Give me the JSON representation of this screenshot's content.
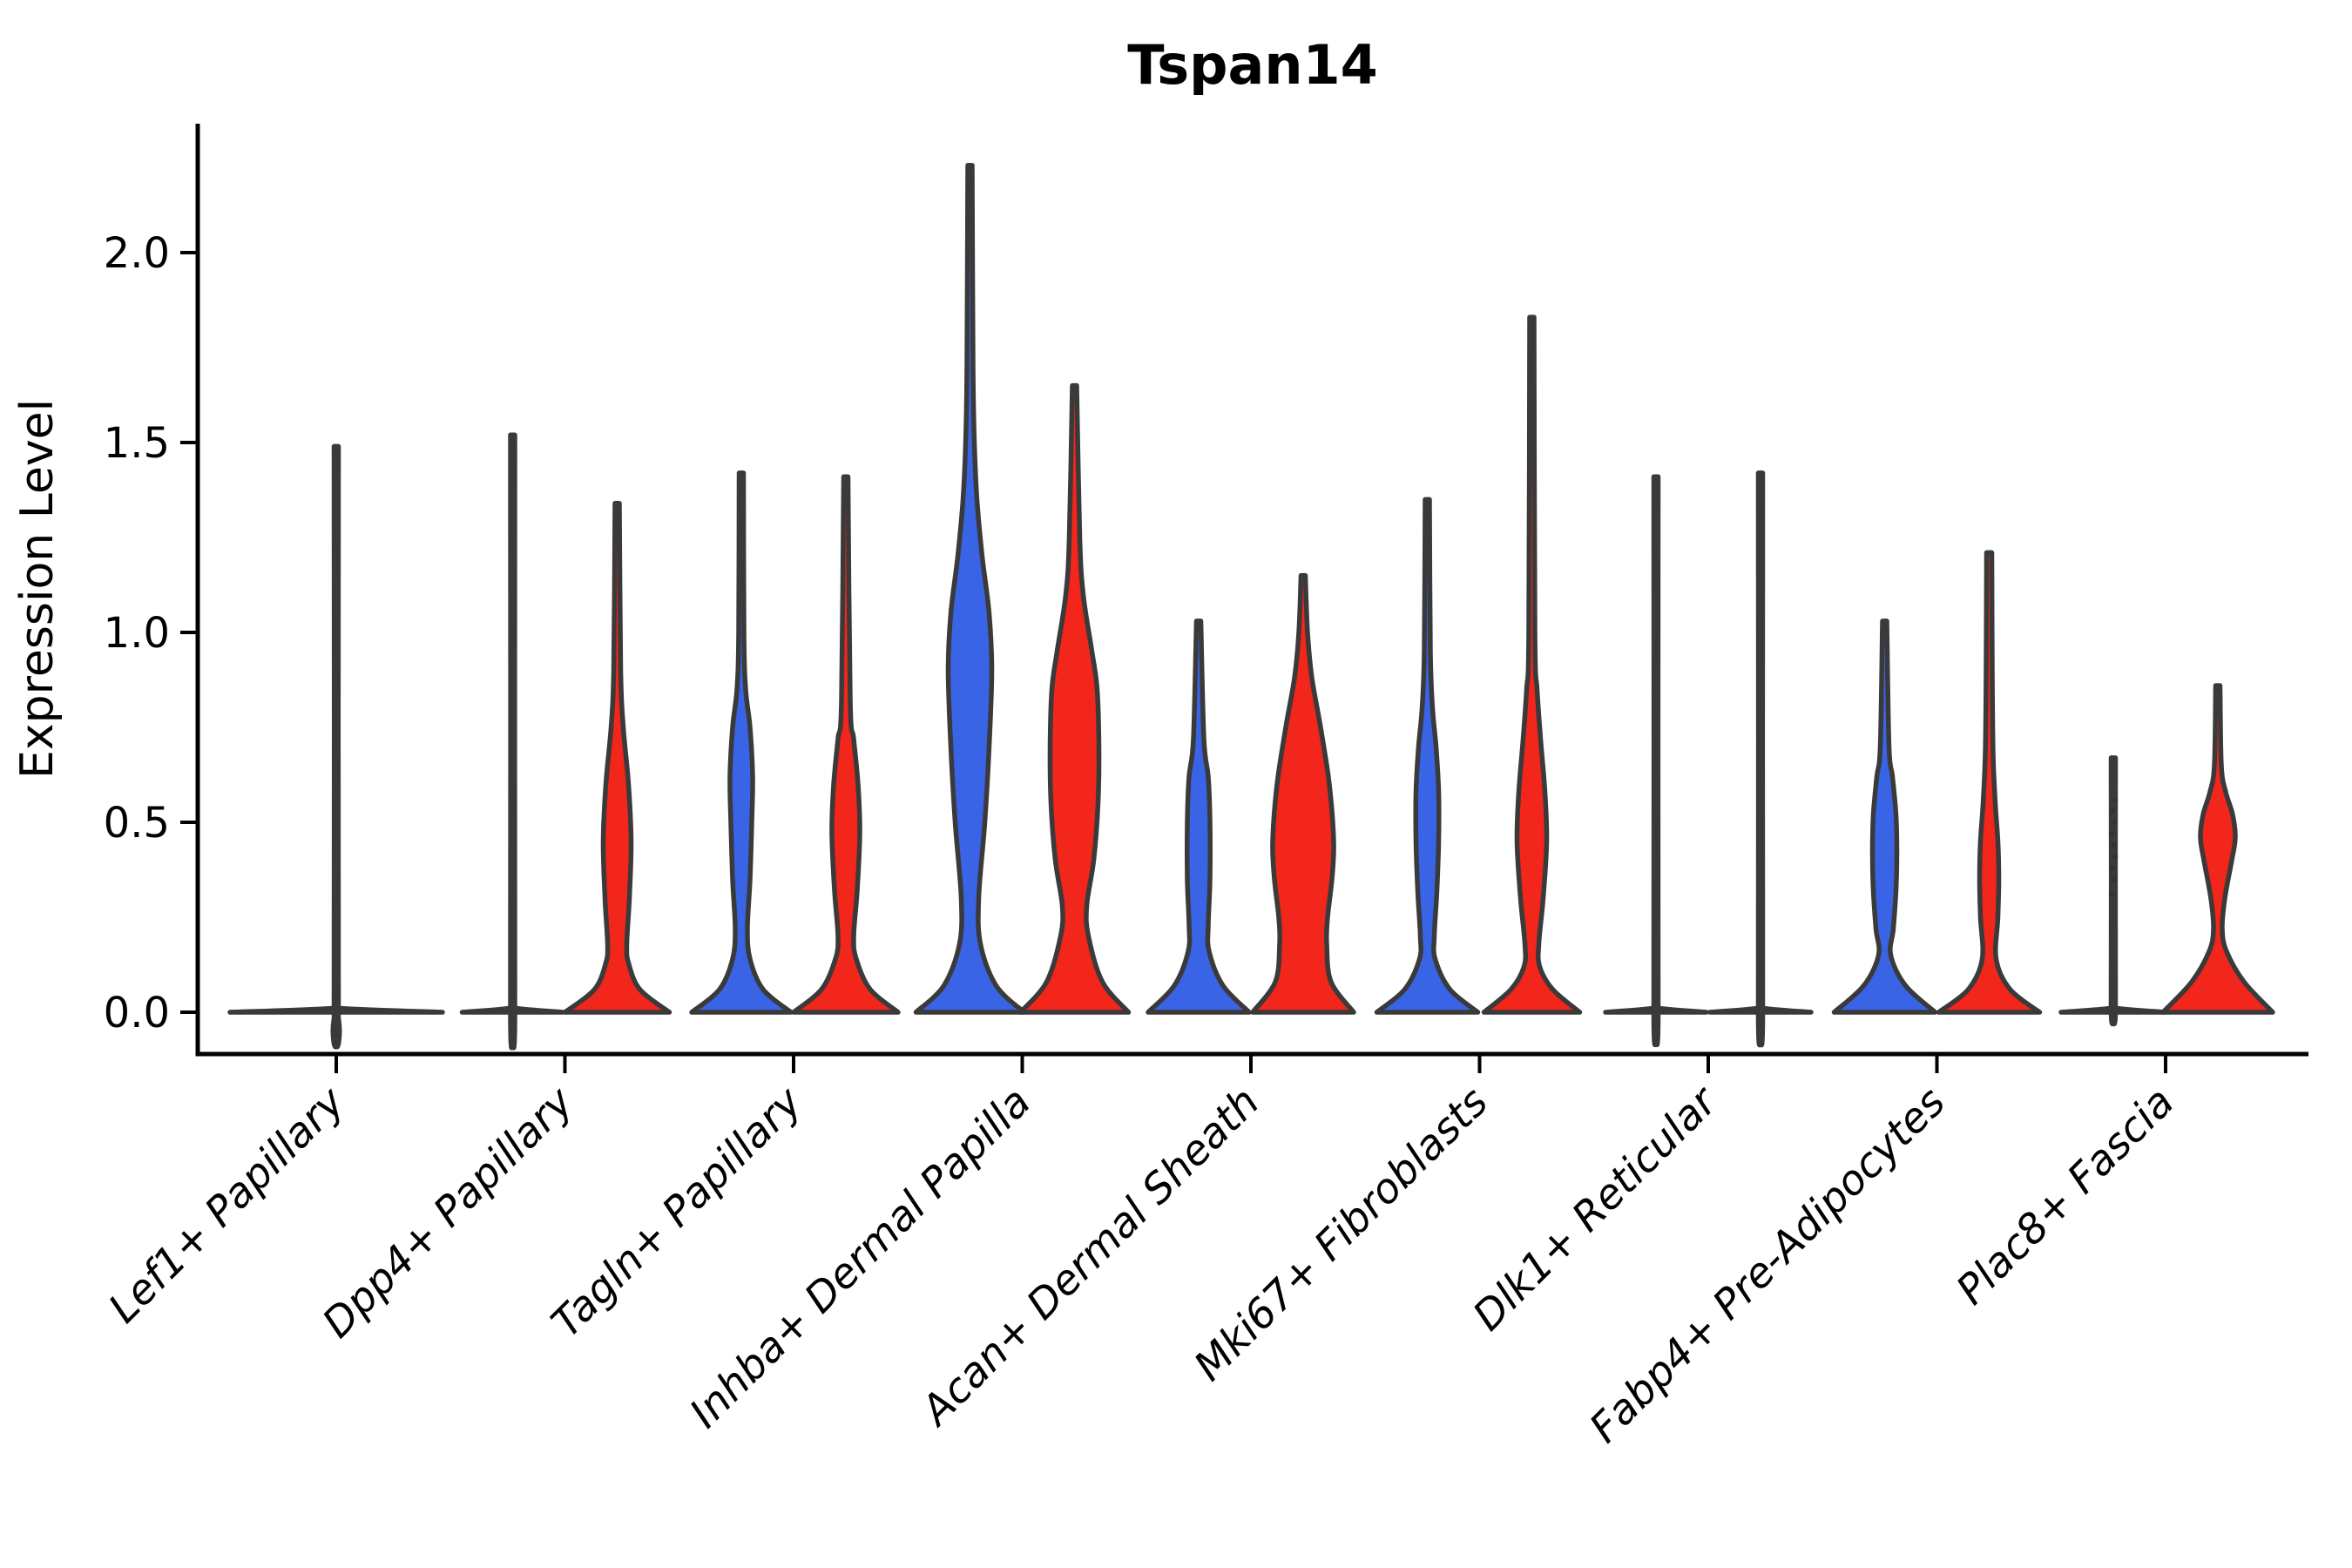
{
  "title": "Tspan14",
  "y_axis": {
    "label": "Expression Level",
    "tick_labels": [
      "0.0",
      "0.5",
      "1.0",
      "1.5",
      "2.0"
    ],
    "tick_values": [
      0.0,
      0.5,
      1.0,
      1.5,
      2.0
    ]
  },
  "x_axis": {
    "categories": [
      "Lef1+ Papillary",
      "Dpp4+ Papillary",
      "Tagln+ Papillary",
      "Inhba+ Dermal Papilla",
      "Acan+ Dermal Sheath",
      "Mki67+ Fibroblasts",
      "Dlk1+ Reticular",
      "Fabp4+ Pre-Adipocytes",
      "Plac8+ Fascia"
    ],
    "label_rotation_deg": 45
  },
  "colors": {
    "blue": "#3A64E6",
    "red": "#F2261A",
    "outline": "#3A3A3A",
    "axis": "#000000",
    "flat_fill": "#3A3A3A",
    "point": "#333333"
  },
  "chart_data": {
    "type": "violin",
    "title": "Tspan14",
    "ylabel": "Expression Level",
    "xlabel": "",
    "ylim": [
      -0.11,
      2.34
    ],
    "grid": false,
    "legend": "none",
    "categories": [
      "Lef1+ Papillary",
      "Dpp4+ Papillary",
      "Tagln+ Papillary",
      "Inhba+ Dermal Papilla",
      "Acan+ Dermal Sheath",
      "Mki67+ Fibroblasts",
      "Dlk1+ Reticular",
      "Fabp4+ Pre-Adipocytes",
      "Plac8+ Fascia"
    ],
    "series_note": "each category split into two violins: blue (left) and red (right); Lef1+ Papillary shows a single full-width flat violin",
    "max_expression": {
      "Lef1+ Papillary": {
        "single": 1.49
      },
      "Dpp4+ Papillary": {
        "blue": 1.52,
        "red": 1.34
      },
      "Tagln+ Papillary": {
        "blue": 1.42,
        "red": 1.41
      },
      "Inhba+ Dermal Papilla": {
        "blue": 2.23,
        "red": 1.65
      },
      "Acan+ Dermal Sheath": {
        "blue": 1.03,
        "red": 1.15
      },
      "Mki67+ Fibroblasts": {
        "blue": 1.35,
        "red": 1.83
      },
      "Dlk1+ Reticular": {
        "blue": 1.41,
        "red": 1.42
      },
      "Fabp4+ Pre-Adipocytes": {
        "blue": 1.03,
        "red": 1.21
      },
      "Plac8+ Fascia": {
        "blue": 0.67,
        "red": 0.86
      }
    },
    "violins": [
      {
        "cat": 0,
        "series": "single",
        "flat": true,
        "max": 1.49,
        "profile": [
          [
            0,
            122
          ],
          [
            0.01,
            6
          ],
          [
            0.02,
            2.5
          ],
          [
            1.49,
            2.5
          ]
        ]
      },
      {
        "cat": 1,
        "series": "blue",
        "flat": true,
        "max": 1.52,
        "profile": [
          [
            0,
            58
          ],
          [
            0.01,
            5
          ],
          [
            0.02,
            2.5
          ],
          [
            1.52,
            2.5
          ]
        ]
      },
      {
        "cat": 1,
        "series": "red",
        "flat": false,
        "max": 1.34,
        "profile": [
          [
            0,
            60
          ],
          [
            0.06,
            26
          ],
          [
            0.13,
            13
          ],
          [
            0.18,
            11
          ],
          [
            0.3,
            14
          ],
          [
            0.45,
            16
          ],
          [
            0.6,
            13
          ],
          [
            0.75,
            7
          ],
          [
            0.9,
            4
          ],
          [
            1.34,
            2.5
          ]
        ]
      },
      {
        "cat": 2,
        "series": "blue",
        "flat": false,
        "max": 1.42,
        "profile": [
          [
            0,
            57
          ],
          [
            0.06,
            25
          ],
          [
            0.14,
            10
          ],
          [
            0.22,
            7
          ],
          [
            0.35,
            10
          ],
          [
            0.5,
            12
          ],
          [
            0.62,
            13
          ],
          [
            0.75,
            10
          ],
          [
            0.85,
            5
          ],
          [
            1.0,
            3
          ],
          [
            1.42,
            2.5
          ]
        ]
      },
      {
        "cat": 2,
        "series": "red",
        "flat": false,
        "max": 1.41,
        "profile": [
          [
            0,
            60
          ],
          [
            0.06,
            28
          ],
          [
            0.14,
            12
          ],
          [
            0.2,
            9
          ],
          [
            0.32,
            13
          ],
          [
            0.47,
            16
          ],
          [
            0.6,
            14
          ],
          [
            0.72,
            9
          ],
          [
            0.82,
            5
          ],
          [
            1.41,
            2.5
          ]
        ]
      },
      {
        "cat": 3,
        "series": "blue",
        "flat": false,
        "max": 2.23,
        "profile": [
          [
            0,
            62
          ],
          [
            0.07,
            30
          ],
          [
            0.18,
            12
          ],
          [
            0.3,
            10
          ],
          [
            0.5,
            17
          ],
          [
            0.7,
            22
          ],
          [
            0.9,
            25
          ],
          [
            1.05,
            22
          ],
          [
            1.2,
            14
          ],
          [
            1.35,
            8
          ],
          [
            1.5,
            5
          ],
          [
            1.7,
            3.5
          ],
          [
            2.23,
            2.5
          ]
        ]
      },
      {
        "cat": 3,
        "series": "red",
        "flat": false,
        "max": 1.65,
        "profile": [
          [
            0,
            62
          ],
          [
            0.08,
            32
          ],
          [
            0.2,
            16
          ],
          [
            0.28,
            14
          ],
          [
            0.4,
            22
          ],
          [
            0.55,
            27
          ],
          [
            0.7,
            28
          ],
          [
            0.85,
            26
          ],
          [
            0.95,
            20
          ],
          [
            1.1,
            10
          ],
          [
            1.25,
            6
          ],
          [
            1.65,
            2.5
          ]
        ]
      },
      {
        "cat": 4,
        "series": "blue",
        "flat": false,
        "max": 1.03,
        "profile": [
          [
            0,
            58
          ],
          [
            0.07,
            28
          ],
          [
            0.16,
            12
          ],
          [
            0.23,
            11
          ],
          [
            0.35,
            13
          ],
          [
            0.5,
            13
          ],
          [
            0.62,
            11
          ],
          [
            0.72,
            6
          ],
          [
            1.03,
            2.5
          ]
        ]
      },
      {
        "cat": 4,
        "series": "red",
        "flat": false,
        "max": 1.15,
        "profile": [
          [
            0,
            58
          ],
          [
            0.08,
            32
          ],
          [
            0.18,
            27
          ],
          [
            0.25,
            28
          ],
          [
            0.35,
            33
          ],
          [
            0.45,
            35
          ],
          [
            0.6,
            30
          ],
          [
            0.75,
            20
          ],
          [
            0.88,
            10
          ],
          [
            1.0,
            5
          ],
          [
            1.15,
            2.5
          ]
        ]
      },
      {
        "cat": 5,
        "series": "blue",
        "flat": false,
        "max": 1.35,
        "profile": [
          [
            0,
            58
          ],
          [
            0.06,
            26
          ],
          [
            0.14,
            9
          ],
          [
            0.2,
            8
          ],
          [
            0.32,
            11
          ],
          [
            0.45,
            13
          ],
          [
            0.58,
            13
          ],
          [
            0.7,
            10
          ],
          [
            0.8,
            6
          ],
          [
            0.95,
            3.5
          ],
          [
            1.35,
            2.5
          ]
        ]
      },
      {
        "cat": 5,
        "series": "red",
        "flat": false,
        "max": 1.83,
        "profile": [
          [
            0,
            55
          ],
          [
            0.06,
            24
          ],
          [
            0.12,
            9
          ],
          [
            0.18,
            8
          ],
          [
            0.3,
            13
          ],
          [
            0.45,
            17
          ],
          [
            0.58,
            15
          ],
          [
            0.72,
            10
          ],
          [
            0.85,
            6
          ],
          [
            1.0,
            3.5
          ],
          [
            1.83,
            2.5
          ]
        ]
      },
      {
        "cat": 6,
        "series": "blue",
        "flat": true,
        "max": 1.41,
        "profile": [
          [
            0,
            58
          ],
          [
            0.01,
            5
          ],
          [
            0.02,
            2.5
          ],
          [
            1.41,
            2.5
          ]
        ]
      },
      {
        "cat": 6,
        "series": "red",
        "flat": true,
        "max": 1.42,
        "profile": [
          [
            0,
            58
          ],
          [
            0.01,
            5
          ],
          [
            0.02,
            2.5
          ],
          [
            1.42,
            2.5
          ]
        ]
      },
      {
        "cat": 7,
        "series": "blue",
        "flat": false,
        "max": 1.03,
        "profile": [
          [
            0,
            58
          ],
          [
            0.07,
            24
          ],
          [
            0.15,
            7
          ],
          [
            0.22,
            10
          ],
          [
            0.32,
            13
          ],
          [
            0.42,
            14
          ],
          [
            0.52,
            13
          ],
          [
            0.62,
            9
          ],
          [
            0.7,
            5
          ],
          [
            1.03,
            2.5
          ]
        ]
      },
      {
        "cat": 7,
        "series": "red",
        "flat": false,
        "max": 1.21,
        "profile": [
          [
            0,
            58
          ],
          [
            0.06,
            24
          ],
          [
            0.14,
            8
          ],
          [
            0.25,
            10
          ],
          [
            0.35,
            11
          ],
          [
            0.45,
            10
          ],
          [
            0.55,
            7
          ],
          [
            0.68,
            4.5
          ],
          [
            0.9,
            3.5
          ],
          [
            1.21,
            3
          ]
        ]
      },
      {
        "cat": 8,
        "series": "blue",
        "flat": true,
        "max": 0.67,
        "profile": [
          [
            0,
            60
          ],
          [
            0.01,
            5
          ],
          [
            0.02,
            2.5
          ],
          [
            0.67,
            2.5
          ]
        ],
        "points": [
          0.31,
          0.35,
          0.38,
          0.41,
          0.44,
          0.47,
          0.5,
          0.53,
          0.56
        ]
      },
      {
        "cat": 8,
        "series": "red",
        "flat": false,
        "max": 0.86,
        "profile": [
          [
            0,
            63
          ],
          [
            0.08,
            30
          ],
          [
            0.16,
            10
          ],
          [
            0.22,
            5
          ],
          [
            0.3,
            8
          ],
          [
            0.4,
            16
          ],
          [
            0.46,
            20
          ],
          [
            0.52,
            17
          ],
          [
            0.58,
            9
          ],
          [
            0.65,
            4
          ],
          [
            0.86,
            2.5
          ]
        ]
      }
    ]
  }
}
